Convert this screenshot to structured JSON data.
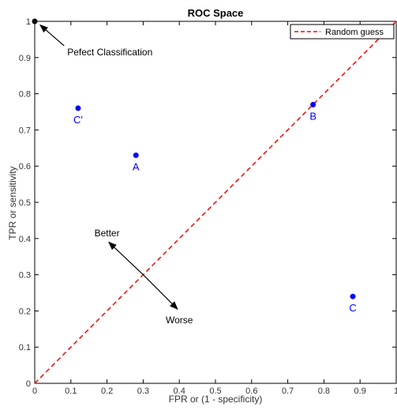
{
  "chart_data": {
    "type": "scatter",
    "title": "ROC Space",
    "xlabel": "FPR or (1 - specificity)",
    "ylabel": "TPR or sensitivity",
    "xlim": [
      0,
      1
    ],
    "ylim": [
      0,
      1
    ],
    "x_ticks": [
      "0",
      "0.1",
      "0.2",
      "0.3",
      "0.4",
      "0.5",
      "0.6",
      "0.7",
      "0.8",
      "0.9",
      "1"
    ],
    "y_ticks": [
      "0",
      "0.1",
      "0.2",
      "0.3",
      "0.4",
      "0.5",
      "0.6",
      "0.7",
      "0.8",
      "0.9",
      "1"
    ],
    "grid": false,
    "legend": {
      "position": "top-right",
      "entries": [
        "Random guess"
      ]
    },
    "series": [
      {
        "name": "Random guess",
        "type": "line",
        "style": "dashed",
        "color": "#ff0000",
        "x": [
          0,
          1
        ],
        "y": [
          0,
          1
        ]
      }
    ],
    "points": [
      {
        "label": "A",
        "x": 0.28,
        "y": 0.63,
        "color": "#0000ff"
      },
      {
        "label": "B",
        "x": 0.77,
        "y": 0.77,
        "color": "#0000ff"
      },
      {
        "label": "C",
        "x": 0.88,
        "y": 0.24,
        "color": "#0000ff"
      },
      {
        "label": "C′",
        "x": 0.12,
        "y": 0.76,
        "color": "#0000ff"
      },
      {
        "label": "",
        "x": 0,
        "y": 1,
        "color": "#000000"
      }
    ],
    "annotations": [
      {
        "text": "Pefect Classification",
        "x": 0.09,
        "y": 0.915,
        "arrow_to": [
          0.015,
          0.99
        ]
      },
      {
        "text": "Better",
        "x": 0.2,
        "y": 0.415,
        "arrow_to": [
          0.205,
          0.39
        ]
      },
      {
        "text": "Worse",
        "x": 0.4,
        "y": 0.175,
        "arrow_to": [
          0.4,
          0.205
        ]
      }
    ],
    "diagonal_arrows": [
      {
        "from": [
          0.3,
          0.3
        ],
        "to": [
          0.205,
          0.39
        ]
      },
      {
        "from": [
          0.3,
          0.3
        ],
        "to": [
          0.395,
          0.205
        ]
      }
    ]
  }
}
